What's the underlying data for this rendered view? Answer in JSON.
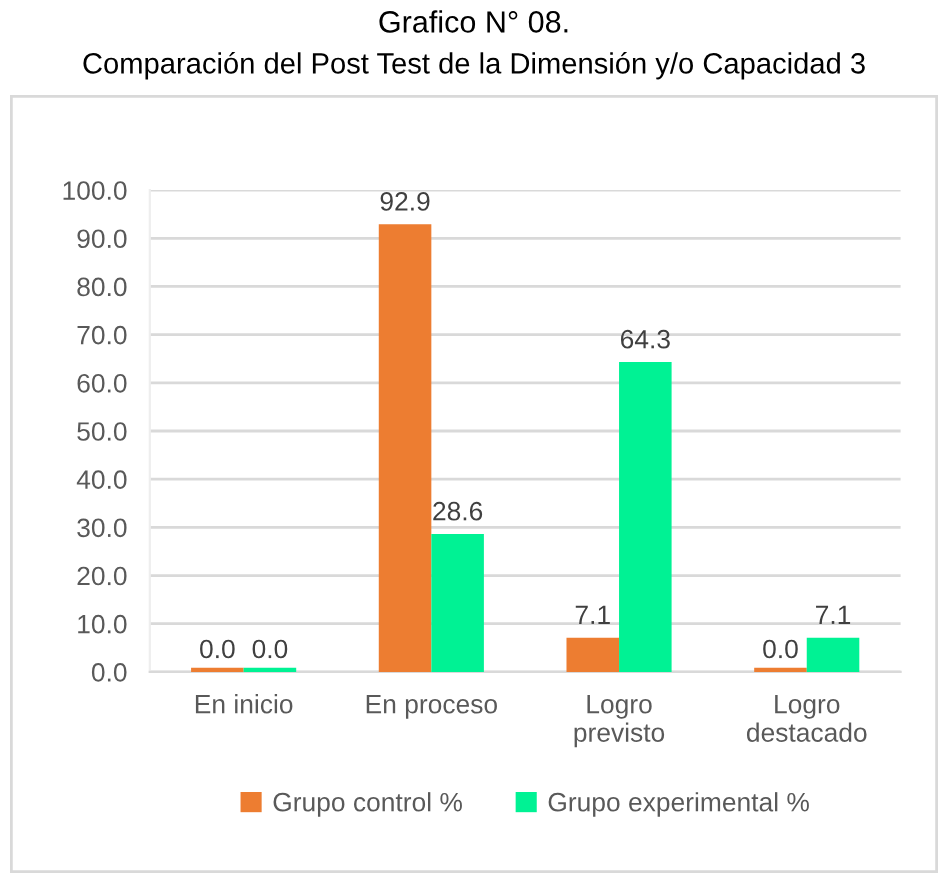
{
  "chart_data": {
    "type": "bar",
    "title": "Grafico N° 08.",
    "subtitle": "Comparación del Post Test de la Dimensión y/o Capacidad 3",
    "categories": [
      "En inicio",
      "En proceso",
      "Logro previsto",
      "Logro destacado"
    ],
    "series": [
      {
        "name": "Grupo control %",
        "color": "#ed7d31",
        "values": [
          0.0,
          92.9,
          7.1,
          0.0
        ],
        "value_labels": [
          "0.0",
          "92.9",
          "7.1",
          "0.0"
        ]
      },
      {
        "name": "Grupo experimental %",
        "color": "#00f294",
        "values": [
          0.0,
          28.6,
          64.3,
          7.1
        ],
        "value_labels": [
          "0.0",
          "28.6",
          "64.3",
          "7.1"
        ]
      }
    ],
    "ylim": [
      0,
      100
    ],
    "yticks": [
      {
        "value": 0,
        "label": "0.0"
      },
      {
        "value": 10,
        "label": "10.0"
      },
      {
        "value": 20,
        "label": "20.0"
      },
      {
        "value": 30,
        "label": "30.0"
      },
      {
        "value": 40,
        "label": "40.0"
      },
      {
        "value": 50,
        "label": "50.0"
      },
      {
        "value": 60,
        "label": "60.0"
      },
      {
        "value": 70,
        "label": "70.0"
      },
      {
        "value": 80,
        "label": "80.0"
      },
      {
        "value": 90,
        "label": "90.0"
      },
      {
        "value": 100,
        "label": "100.0"
      }
    ],
    "grid": "y",
    "legend": "bottom"
  }
}
